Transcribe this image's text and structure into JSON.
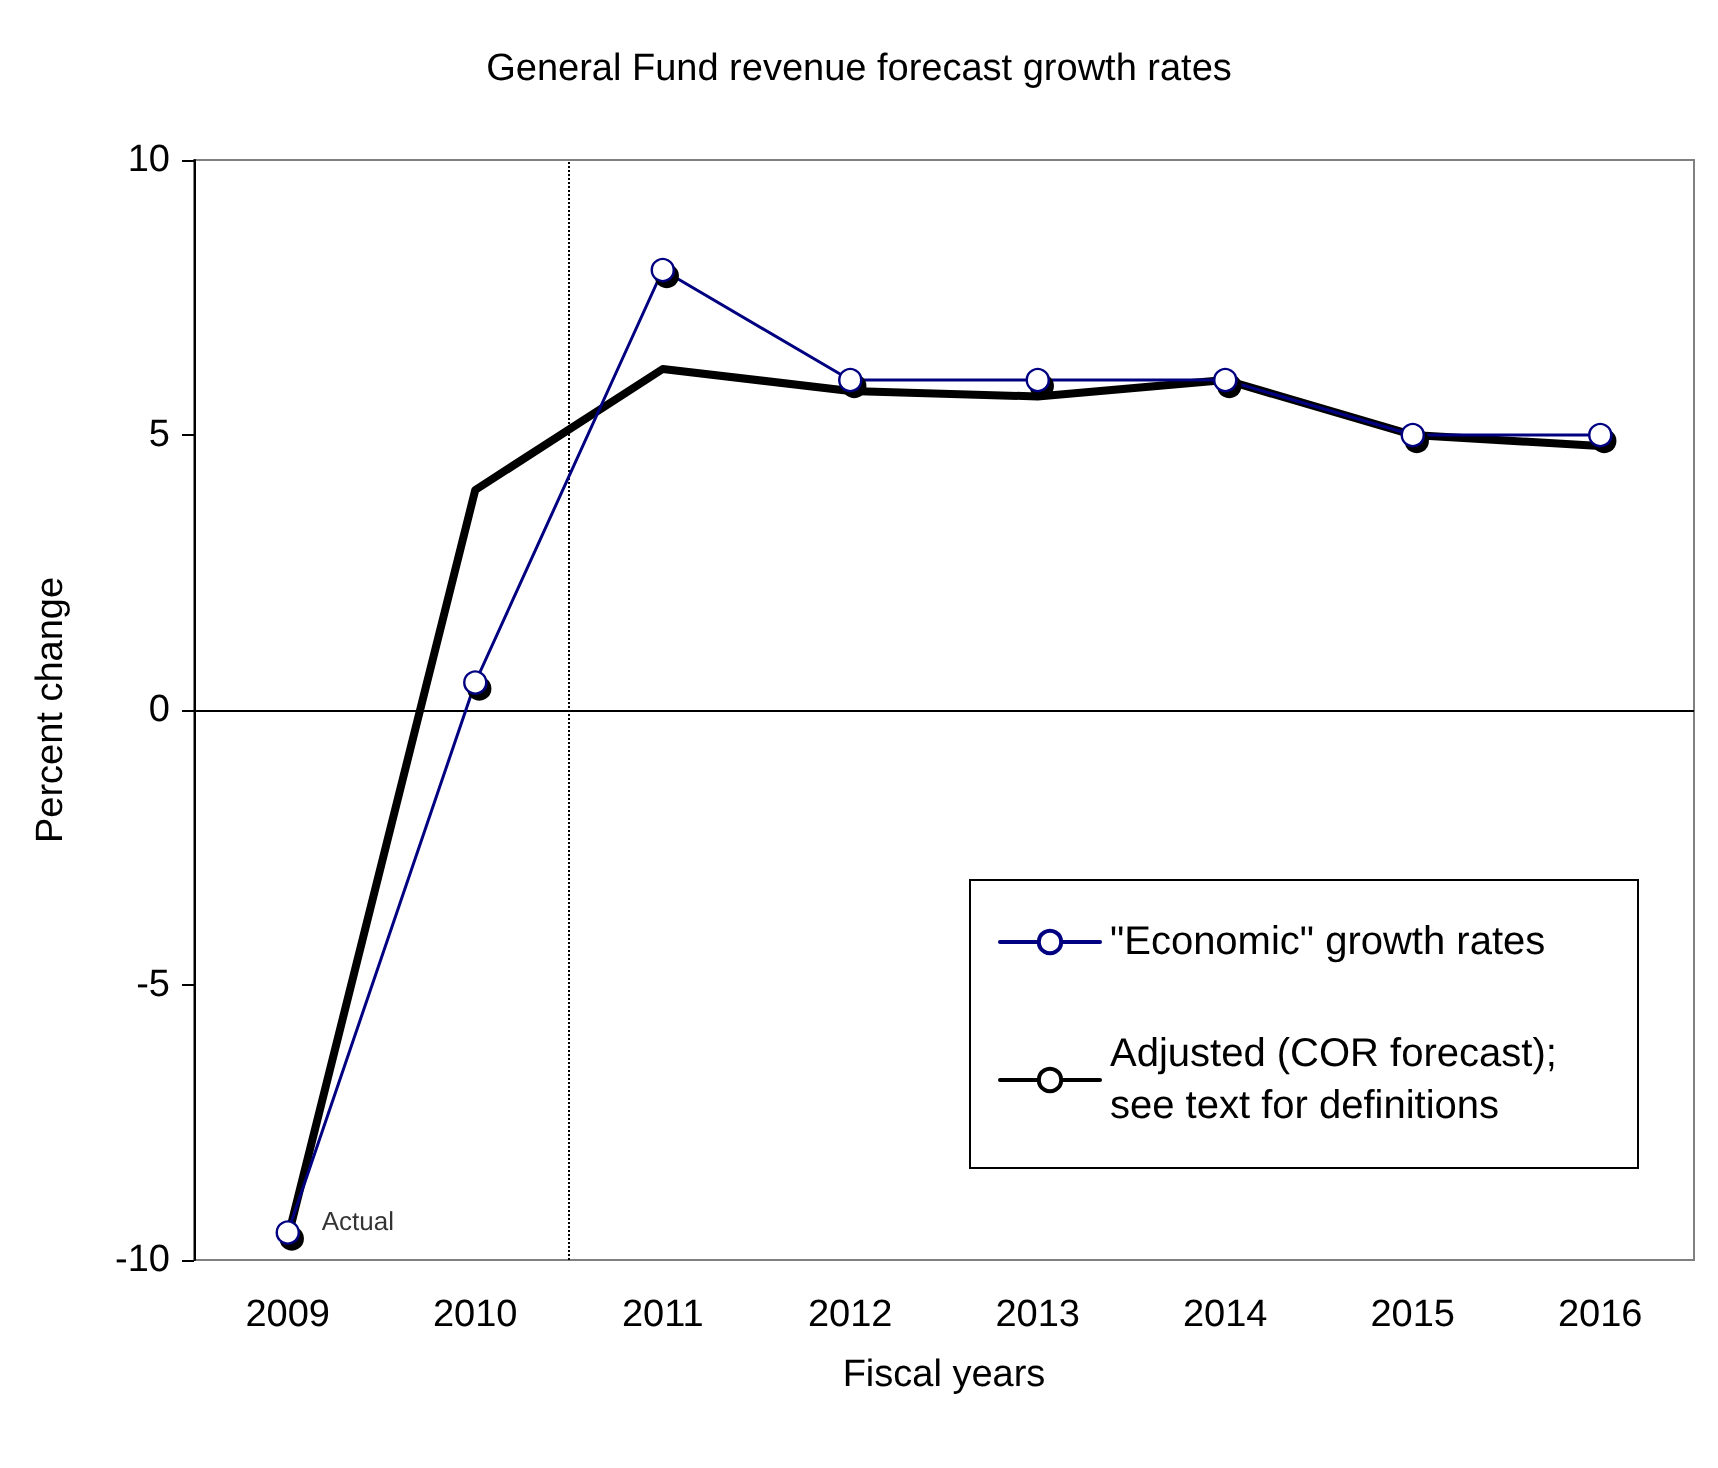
{
  "chart_data": {
    "type": "line",
    "title": "General Fund revenue forecast growth rates",
    "xlabel": "Fiscal years",
    "ylabel": "Percent change",
    "x": [
      2009,
      2010,
      2011,
      2012,
      2013,
      2014,
      2015,
      2016
    ],
    "series": [
      {
        "name": "\"Economic\" growth rates",
        "color": "#000080",
        "values": [
          -9.5,
          0.5,
          8.0,
          6.0,
          6.0,
          6.0,
          5.0,
          5.0
        ],
        "marker": "circle"
      },
      {
        "name": "Adjusted (COR forecast); see text for definitions",
        "color": "#000000",
        "values": [
          -9.6,
          4.0,
          6.2,
          5.8,
          5.7,
          6.0,
          5.0,
          4.8
        ],
        "marker": "none"
      }
    ],
    "xlim": [
      2008.5,
      2016.5
    ],
    "xticks": [
      2009,
      2010,
      2011,
      2012,
      2013,
      2014,
      2015,
      2016
    ],
    "ylim": [
      -10,
      10
    ],
    "yticks": [
      -10,
      -5,
      0,
      5,
      10
    ],
    "ref_lines": [
      {
        "axis": "x",
        "value": 2010.5,
        "line_style": "dotted"
      },
      {
        "axis": "y",
        "value": 0,
        "line_style": "solid"
      }
    ],
    "annotations": [
      {
        "text": "Actual",
        "x": 2009,
        "y": -9.5
      }
    ],
    "grid": false,
    "legend": "bottom right",
    "line_style": "solid"
  }
}
